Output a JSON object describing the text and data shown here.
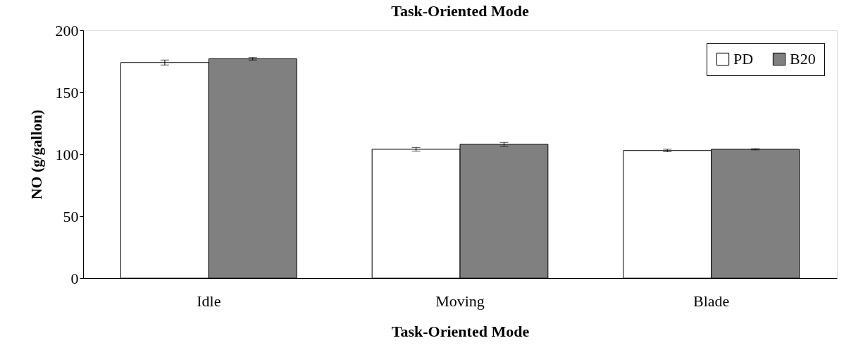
{
  "chart_data": {
    "type": "bar",
    "title": "Task-Oriented Mode",
    "xlabel": "Task-Oriented Mode",
    "ylabel": "NO (g/gallon)",
    "categories": [
      "Idle",
      "Moving",
      "Blade"
    ],
    "series": [
      {
        "name": "PD",
        "color": "#ffffff",
        "values": [
          174,
          104,
          103
        ],
        "errors": [
          2,
          1.5,
          1
        ]
      },
      {
        "name": "B20",
        "color": "#808080",
        "values": [
          177,
          108,
          104
        ],
        "errors": [
          1,
          1.5,
          0.5
        ]
      }
    ],
    "ylim": [
      0,
      200
    ],
    "yticks": [
      0,
      50,
      100,
      150,
      200
    ],
    "grid": false,
    "legend": "top right"
  }
}
